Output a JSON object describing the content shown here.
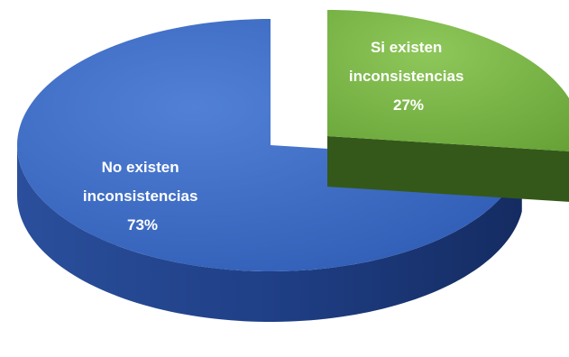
{
  "chart_data": {
    "type": "pie",
    "title": "",
    "slices": [
      {
        "label_line1": "Si existen",
        "label_line2": "inconsistencias",
        "percent_label": "27%",
        "value": 27,
        "color_top": "#79b347",
        "color_side": "#3f6a1c",
        "exploded": true
      },
      {
        "label_line1": "No existen",
        "label_line2": "inconsistencias",
        "percent_label": "73%",
        "value": 73,
        "color_top": "#3d6cc4",
        "color_side": "#1d3a7a",
        "exploded": false
      }
    ]
  }
}
